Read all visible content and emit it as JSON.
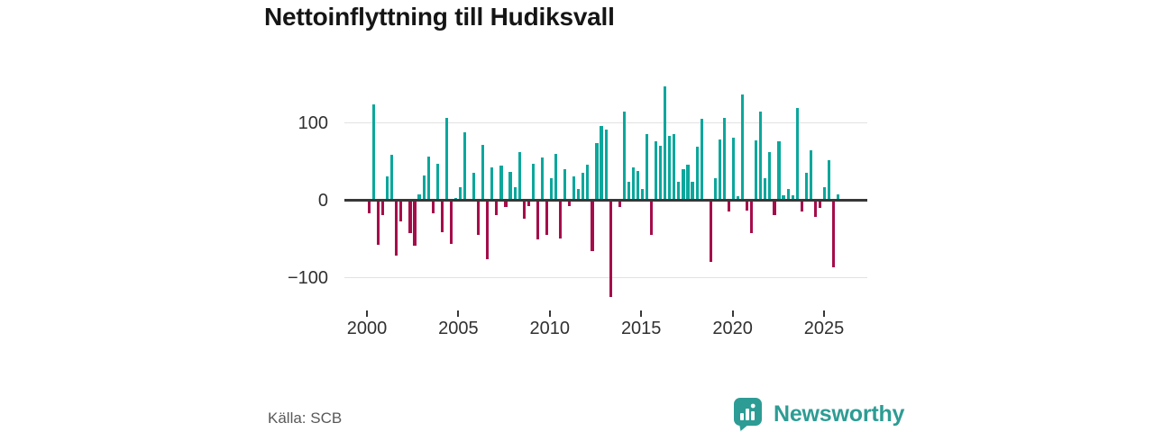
{
  "title": "Nettoinflyttning till Hudiksvall",
  "source": "Källa: SCB",
  "brand": {
    "name": "Newsworthy",
    "color": "#2d9c94"
  },
  "chart_data": {
    "type": "bar",
    "title": "Nettoinflyttning till Hudiksvall",
    "frequency": "quarterly",
    "start_period": "2000 Q1",
    "x_tick_labels": [
      "2000",
      "2005",
      "2010",
      "2015",
      "2020",
      "2025"
    ],
    "y_ticks": [
      100,
      0,
      -100
    ],
    "y_tick_labels": [
      "100",
      "0",
      "−100"
    ],
    "ylim": [
      -160,
      160
    ],
    "grid": true,
    "legend": "none",
    "colors": {
      "positive": "#0ba79c",
      "negative": "#a50d4a"
    },
    "values": [
      -17,
      124,
      -57,
      -19,
      31,
      59,
      -72,
      -27,
      2,
      -43,
      -59,
      8,
      32,
      56,
      -17,
      47,
      -41,
      106,
      -56,
      3,
      17,
      88,
      1,
      36,
      -45,
      71,
      -76,
      42,
      -19,
      45,
      -9,
      37,
      17,
      62,
      -24,
      -7,
      47,
      -51,
      55,
      -45,
      29,
      60,
      -49,
      40,
      -7,
      31,
      15,
      35,
      46,
      -66,
      74,
      96,
      91,
      -125,
      -2,
      -9,
      114,
      24,
      43,
      38,
      15,
      85,
      -45,
      76,
      70,
      147,
      83,
      86,
      24,
      40,
      46,
      24,
      69,
      105,
      -2,
      -80,
      29,
      79,
      106,
      -14,
      81,
      5,
      137,
      -13,
      -43,
      77,
      114,
      29,
      62,
      -19,
      76,
      6,
      14,
      6,
      119,
      -14,
      35,
      65,
      -21,
      -10,
      17,
      52,
      -87,
      7
    ]
  }
}
